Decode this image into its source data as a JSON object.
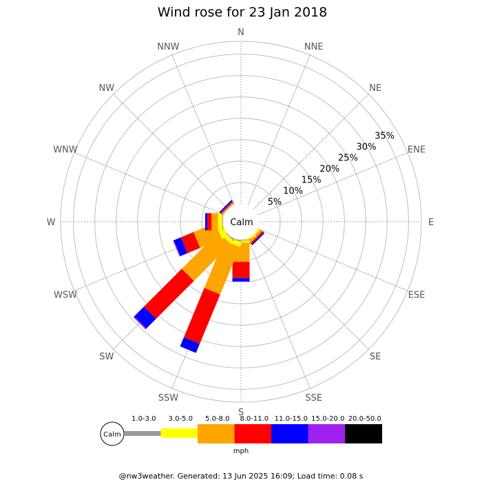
{
  "chart_data": {
    "type": "windrose",
    "title": "Wind rose for 23 Jan 2018",
    "directions": [
      "N",
      "NNE",
      "NE",
      "ENE",
      "E",
      "ESE",
      "SE",
      "SSE",
      "S",
      "SSW",
      "SW",
      "WSW",
      "W",
      "WNW",
      "NW",
      "NNW"
    ],
    "radial_ticks": [
      "5%",
      "10%",
      "15%",
      "20%",
      "25%",
      "30%",
      "35%"
    ],
    "radial_max": 38,
    "calm_label": "Calm",
    "unit": "mph",
    "bins": [
      {
        "label": "1.0-3.0",
        "color": "#999999"
      },
      {
        "label": "3.0-5.0",
        "color": "#ffff00"
      },
      {
        "label": "5.0-8.0",
        "color": "#ffa500"
      },
      {
        "label": "8.0-11.0",
        "color": "#ff0000"
      },
      {
        "label": "11.0-15.0",
        "color": "#0000ff"
      },
      {
        "label": "15.0-20.0",
        "color": "#a020f0"
      },
      {
        "label": "20.0-50.0",
        "color": "#000000"
      }
    ],
    "series": [
      {
        "direction": "N",
        "values": [
          0,
          0,
          0,
          0,
          0,
          0,
          0
        ]
      },
      {
        "direction": "NNE",
        "values": [
          0,
          0,
          0,
          0,
          0,
          0,
          0
        ]
      },
      {
        "direction": "NE",
        "values": [
          0,
          0,
          0,
          0,
          0,
          0,
          0
        ]
      },
      {
        "direction": "ENE",
        "values": [
          0,
          0,
          0,
          0,
          0,
          0,
          0
        ]
      },
      {
        "direction": "E",
        "values": [
          0,
          0,
          0,
          0,
          0,
          0,
          0
        ]
      },
      {
        "direction": "ESE",
        "values": [
          0,
          0,
          0,
          0,
          0,
          0,
          0
        ]
      },
      {
        "direction": "SE",
        "values": [
          0,
          0.3,
          0.6,
          0.4,
          0.3,
          0,
          0
        ]
      },
      {
        "direction": "SSE",
        "values": [
          0,
          0.3,
          0.3,
          0,
          0,
          0,
          0
        ]
      },
      {
        "direction": "S",
        "values": [
          0.2,
          0.5,
          4.5,
          3.8,
          0.8,
          0,
          0
        ]
      },
      {
        "direction": "SSW",
        "values": [
          0.2,
          1.2,
          12.0,
          12.5,
          2.3,
          0,
          0
        ]
      },
      {
        "direction": "SW",
        "values": [
          0.2,
          1.0,
          12.2,
          12.5,
          3.2,
          0.3,
          0
        ]
      },
      {
        "direction": "WSW",
        "values": [
          0,
          1.5,
          5.5,
          3.2,
          1.8,
          0.2,
          0
        ]
      },
      {
        "direction": "W",
        "values": [
          0.2,
          1.0,
          1.5,
          1.0,
          0.5,
          0,
          0
        ]
      },
      {
        "direction": "WNW",
        "values": [
          0,
          0,
          0,
          0,
          0,
          0,
          0
        ]
      },
      {
        "direction": "NW",
        "values": [
          0.2,
          0,
          0.2,
          0.3,
          0.3,
          0,
          0
        ]
      },
      {
        "direction": "NNW",
        "values": [
          0,
          0,
          0,
          0,
          0,
          0,
          0
        ]
      }
    ]
  },
  "footer": "@nw3weather. Generated: 13 Jun 2025 16:09; Load time: 0.08 s"
}
